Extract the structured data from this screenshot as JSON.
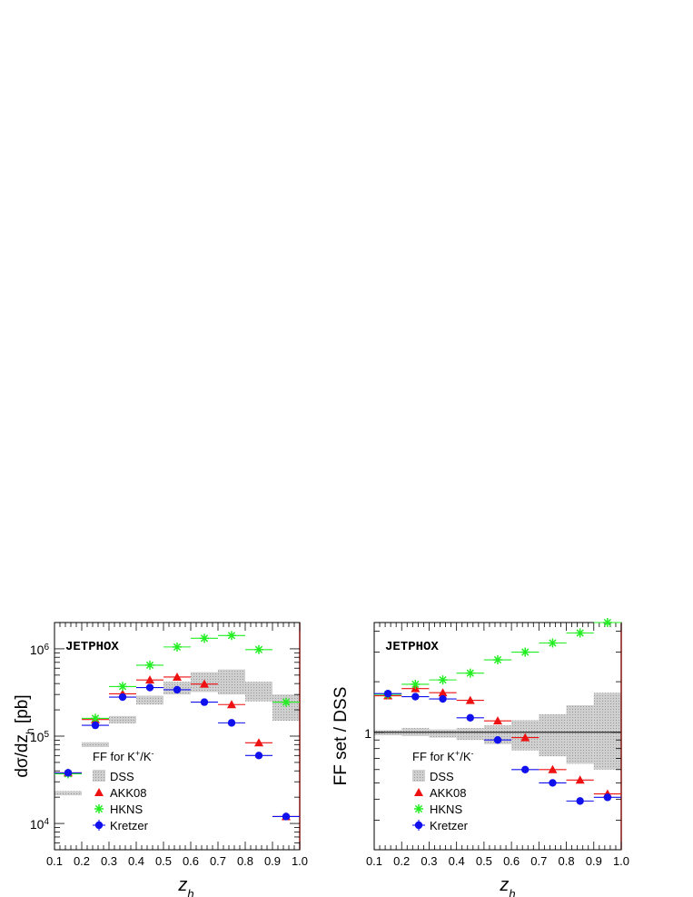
{
  "chart_data": [
    {
      "type": "scatter",
      "name": "left",
      "tag": "JETPHOX",
      "xlabel": "z",
      "xlabel_sub": "h",
      "ylabel": "dσ/dz",
      "ylabel_sub": "h",
      "ylabel_unit": "[pb]",
      "yscale": "log",
      "xlim": [
        0.1,
        1.0
      ],
      "ylim": [
        5000,
        2000000
      ],
      "xticks": [
        "0.1",
        "0.2",
        "0.3",
        "0.4",
        "0.5",
        "0.6",
        "0.7",
        "0.8",
        "0.9",
        "1.0"
      ],
      "yticks": [
        {
          "value": 10000,
          "base": "10",
          "exp": "4"
        },
        {
          "value": 100000,
          "base": "10",
          "exp": "5"
        },
        {
          "value": 1000000,
          "base": "10",
          "exp": "6"
        }
      ],
      "legend": {
        "title": "FF for K",
        "title_sup1": "+",
        "title_mid": "/K",
        "title_sup2": "-",
        "entries": [
          "DSS",
          "AKK08",
          "HKNS",
          "Kretzer"
        ]
      },
      "band": {
        "name": "DSS",
        "x_edges": [
          0.1,
          0.2,
          0.3,
          0.4,
          0.5,
          0.6,
          0.7,
          0.8,
          0.9,
          1.0
        ],
        "lower": [
          21000,
          75000,
          140000,
          230000,
          300000,
          320000,
          300000,
          250000,
          150000,
          22000
        ],
        "upper": [
          23500,
          85000,
          170000,
          290000,
          420000,
          540000,
          580000,
          420000,
          300000,
          90000
        ]
      },
      "series": [
        {
          "name": "AKK08",
          "color": "#ee1111",
          "marker": "triangle",
          "x": [
            0.15,
            0.25,
            0.35,
            0.45,
            0.55,
            0.65,
            0.75,
            0.85,
            0.95
          ],
          "y": [
            38000,
            155000,
            305000,
            440000,
            475000,
            395000,
            230000,
            84000,
            12000
          ]
        },
        {
          "name": "HKNS",
          "color": "#22ee22",
          "marker": "star",
          "x": [
            0.15,
            0.25,
            0.35,
            0.45,
            0.55,
            0.65,
            0.75,
            0.85,
            0.95
          ],
          "y": [
            37000,
            160000,
            370000,
            650000,
            1050000,
            1320000,
            1420000,
            980000,
            245000
          ]
        },
        {
          "name": "Kretzer",
          "color": "#1111ee",
          "marker": "circle",
          "x": [
            0.15,
            0.25,
            0.35,
            0.45,
            0.55,
            0.65,
            0.75,
            0.85,
            0.95
          ],
          "y": [
            38000,
            133000,
            280000,
            360000,
            340000,
            245000,
            142000,
            60000,
            12000
          ]
        }
      ]
    },
    {
      "type": "scatter",
      "name": "right",
      "tag": "JETPHOX",
      "xlabel": "z",
      "xlabel_sub": "h",
      "ylabel": "FF set / DSS",
      "yscale": "log",
      "xlim": [
        0.1,
        1.0
      ],
      "ylim": [
        0.2,
        4.5
      ],
      "xticks": [
        "0.1",
        "0.2",
        "0.3",
        "0.4",
        "0.5",
        "0.6",
        "0.7",
        "0.8",
        "0.9",
        "1.0"
      ],
      "yticks": [
        {
          "value": 1,
          "label": "1"
        }
      ],
      "legend": {
        "title": "FF for K",
        "title_sup1": "+",
        "title_mid": "/K",
        "title_sup2": "-",
        "entries": [
          "DSS",
          "AKK08",
          "HKNS",
          "Kretzer"
        ]
      },
      "band": {
        "name": "DSS",
        "x_edges": [
          0.1,
          0.2,
          0.3,
          0.4,
          0.5,
          0.6,
          0.7,
          0.8,
          0.9,
          1.0
        ],
        "lower": [
          0.96,
          0.95,
          0.93,
          0.9,
          0.85,
          0.78,
          0.72,
          0.65,
          0.6,
          0.58
        ],
        "upper": [
          1.03,
          1.06,
          1.04,
          1.06,
          1.1,
          1.18,
          1.28,
          1.45,
          1.72,
          2.0
        ]
      },
      "series": [
        {
          "name": "AKK08",
          "color": "#ee1111",
          "marker": "triangle",
          "x": [
            0.15,
            0.25,
            0.35,
            0.45,
            0.55,
            0.65,
            0.75,
            0.85,
            0.95
          ],
          "y": [
            1.65,
            1.82,
            1.72,
            1.55,
            1.17,
            0.93,
            0.6,
            0.52,
            0.43
          ]
        },
        {
          "name": "HKNS",
          "color": "#22ee22",
          "marker": "star",
          "x": [
            0.15,
            0.25,
            0.35,
            0.45,
            0.55,
            0.65,
            0.75,
            0.85,
            0.95
          ],
          "y": [
            1.68,
            1.93,
            2.05,
            2.25,
            2.7,
            3.0,
            3.4,
            3.9,
            4.5
          ]
        },
        {
          "name": "Kretzer",
          "color": "#1111ee",
          "marker": "circle",
          "x": [
            0.15,
            0.25,
            0.35,
            0.45,
            0.55,
            0.65,
            0.75,
            0.85,
            0.95
          ],
          "y": [
            1.7,
            1.63,
            1.58,
            1.22,
            0.9,
            0.6,
            0.5,
            0.39,
            0.41
          ]
        }
      ]
    }
  ]
}
